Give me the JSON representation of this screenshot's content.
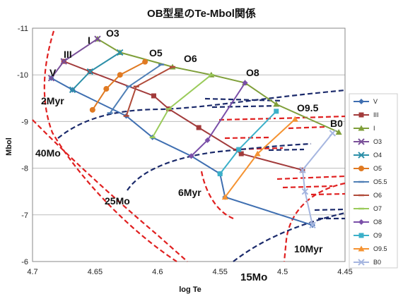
{
  "chart_data": {
    "type": "line",
    "title": "OB型星のTe-Mbol関係",
    "xlabel": "log Te",
    "ylabel": "Mbol",
    "xlim": [
      4.7,
      4.45
    ],
    "ylim": [
      -6,
      -11
    ],
    "x_ticks": [
      "4.7",
      "4.65",
      "4.6",
      "4.55",
      "4.5",
      "4.45"
    ],
    "y_ticks": [
      "-11",
      "-10",
      "-9",
      "-8",
      "-7",
      "-6"
    ],
    "grid": true,
    "legend_position": "right",
    "series": [
      {
        "name": "V",
        "color": "#3F6FB1",
        "marker": "diamond",
        "points": [
          [
            4.685,
            -9.93
          ],
          [
            4.668,
            -9.68
          ],
          [
            4.625,
            -9.12
          ],
          [
            4.604,
            -8.66
          ],
          [
            4.573,
            -8.26
          ],
          [
            4.55,
            -7.88
          ],
          [
            4.546,
            -7.38
          ],
          [
            4.476,
            -6.78
          ]
        ]
      },
      {
        "name": "III",
        "color": "#A23B3B",
        "marker": "square",
        "points": [
          [
            4.675,
            -10.29
          ],
          [
            4.654,
            -10.07
          ],
          [
            4.603,
            -9.55
          ],
          [
            4.591,
            -9.27
          ],
          [
            4.567,
            -8.87
          ],
          [
            4.533,
            -8.31
          ],
          [
            4.484,
            -7.96
          ]
        ]
      },
      {
        "name": "I",
        "color": "#7F9F3A",
        "marker": "triangle",
        "points": [
          [
            4.648,
            -10.77
          ],
          [
            4.63,
            -10.48
          ],
          [
            4.588,
            -10.17
          ],
          [
            4.557,
            -10.0
          ],
          [
            4.53,
            -9.83
          ],
          [
            4.505,
            -9.37
          ],
          [
            4.455,
            -8.77
          ]
        ]
      },
      {
        "name": "O3",
        "color": "#7A5099",
        "marker": "x",
        "points": [
          [
            4.685,
            -9.93
          ],
          [
            4.675,
            -10.29
          ],
          [
            4.648,
            -10.77
          ]
        ]
      },
      {
        "name": "O4",
        "color": "#2C8FA8",
        "marker": "x",
        "points": [
          [
            4.668,
            -9.68
          ],
          [
            4.654,
            -10.07
          ],
          [
            4.63,
            -10.48
          ]
        ]
      },
      {
        "name": "O5",
        "color": "#E07A22",
        "marker": "circle",
        "points": [
          [
            4.652,
            -9.25
          ],
          [
            4.641,
            -9.7
          ],
          [
            4.63,
            -10.0
          ],
          [
            4.61,
            -10.28
          ]
        ]
      },
      {
        "name": "O5.5",
        "color": "#4F7FB6",
        "marker": "dash",
        "points": [
          [
            4.638,
            -9.18
          ],
          [
            4.623,
            -9.75
          ],
          [
            4.597,
            -10.22
          ]
        ]
      },
      {
        "name": "O6",
        "color": "#B04B3A",
        "marker": "dash",
        "points": [
          [
            4.625,
            -9.12
          ],
          [
            4.617,
            -9.75
          ],
          [
            4.588,
            -10.17
          ]
        ]
      },
      {
        "name": "O7",
        "color": "#9ACB5A",
        "marker": "dash",
        "points": [
          [
            4.604,
            -8.66
          ],
          [
            4.591,
            -9.27
          ],
          [
            4.557,
            -10.0
          ]
        ]
      },
      {
        "name": "O8",
        "color": "#7A4FA8",
        "marker": "diamond",
        "points": [
          [
            4.573,
            -8.26
          ],
          [
            4.56,
            -8.6
          ],
          [
            4.53,
            -9.83
          ]
        ]
      },
      {
        "name": "O9",
        "color": "#3BB0C9",
        "marker": "square",
        "points": [
          [
            4.55,
            -7.88
          ],
          [
            4.535,
            -8.4
          ],
          [
            4.505,
            -9.22
          ]
        ]
      },
      {
        "name": "O9.5",
        "color": "#F59332",
        "marker": "triangle",
        "points": [
          [
            4.546,
            -7.38
          ],
          [
            4.52,
            -8.31
          ],
          [
            4.49,
            -9.05
          ]
        ]
      },
      {
        "name": "B0",
        "color": "#A6B6E0",
        "marker": "x",
        "points": [
          [
            4.476,
            -6.78
          ],
          [
            4.482,
            -7.5
          ],
          [
            4.484,
            -7.96
          ],
          [
            4.46,
            -8.75
          ]
        ]
      }
    ],
    "annotations": {
      "luminosity_classes": [
        "V",
        "III",
        "I"
      ],
      "spectral_types": [
        "O3",
        "O5",
        "O6",
        "O8",
        "O9.5",
        "B0"
      ],
      "isochrones": [
        "2Myr",
        "6Myr",
        "10Myr"
      ],
      "masses": [
        "40Mo",
        "25Mo",
        "15Mo"
      ]
    }
  }
}
